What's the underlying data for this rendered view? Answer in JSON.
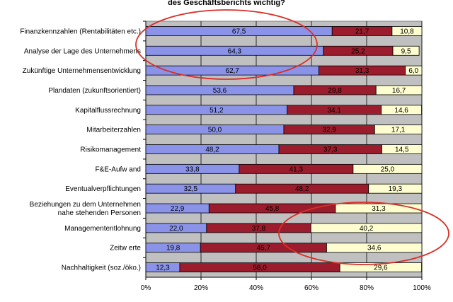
{
  "title_fragment": "des Geschäftsberichts wichtig?",
  "chart_data": {
    "type": "bar",
    "orientation": "horizontal",
    "stacked": true,
    "stack_mode": "percent",
    "categories": [
      "Finanzkennzahlen (Rentabilitäten etc.)",
      "Analyse der Lage des Unternehmens",
      "Zukünftige Unternehmensentwicklung",
      "Plandaten (zukunftsorientiert)",
      "Kapitalflussrechnung",
      "Mitarbeiterzahlen",
      "Risikomanagement",
      "F&E-Aufwand",
      "Eventualverpflichtungen",
      "Beziehungen zu dem Unternehmen nahe stehenden Personen",
      "Managemententlohnung",
      "Zeitwerte",
      "Nachhaltigkeit (soz./öko.)"
    ],
    "category_display": [
      [
        "Finanzkennzahlen (Rentabilitäten etc.)"
      ],
      [
        "Analyse der Lage des Unternehmens"
      ],
      [
        "Zukünftige Unternehmensentwicklung"
      ],
      [
        "Plandaten (zukunftsorientiert)"
      ],
      [
        "Kapitalflussrechnung"
      ],
      [
        "Mitarbeiterzahlen"
      ],
      [
        "Risikomanagement"
      ],
      [
        "F&E-Aufw and"
      ],
      [
        "Eventualverpflichtungen"
      ],
      [
        "Beziehungen zu dem Unternehmen",
        "nahe stehenden Personen"
      ],
      [
        "Managemententlohnung"
      ],
      [
        "Zeitw erte"
      ],
      [
        "Nachhaltigkeit (soz./öko.)"
      ]
    ],
    "series": [
      {
        "color": "#8b93e8",
        "values": [
          67.5,
          64.3,
          62.7,
          53.6,
          51.2,
          50.0,
          48.2,
          33.8,
          32.5,
          22.9,
          22.0,
          19.8,
          12.3
        ],
        "labels": [
          "67,5",
          "64,3",
          "62,7",
          "53,6",
          "51,2",
          "50,0",
          "48,2",
          "33,8",
          "32,5",
          "22,9",
          "22,0",
          "19,8",
          "12,3"
        ]
      },
      {
        "color": "#9b1c2c",
        "values": [
          21.7,
          25.2,
          31.3,
          29.8,
          34.1,
          32.9,
          37.3,
          41.3,
          48.2,
          45.8,
          37.8,
          45.7,
          58.0
        ],
        "labels": [
          "21,7",
          "25,2",
          "31,3",
          "29,8",
          "34,1",
          "32,9",
          "37,3",
          "41,3",
          "48,2",
          "45,8",
          "37,8",
          "45,7",
          "58,0"
        ]
      },
      {
        "color": "#fdfdd0",
        "values": [
          10.8,
          9.5,
          6.0,
          16.7,
          14.6,
          17.1,
          14.5,
          25.0,
          19.3,
          31.3,
          40.2,
          34.6,
          29.6
        ],
        "labels": [
          "10,8",
          "9,5",
          "6,0",
          "16,7",
          "14,6",
          "17,1",
          "14,5",
          "25,0",
          "19,3",
          "31,3",
          "40,2",
          "34,6",
          "29,6"
        ]
      }
    ],
    "xlim": [
      0,
      100
    ],
    "xticks": [
      "0%",
      "20%",
      "40%",
      "60%",
      "80%",
      "100%"
    ],
    "grid": true,
    "legend": "none",
    "annotations": [
      "red ellipse around first three bars",
      "red ellipse around Managemententlohnung and Zeitwerte segments"
    ]
  },
  "colors": {
    "plot_background": "#c0c0c0",
    "gridline": "#000000",
    "annotation_ellipse": "#d9302a"
  }
}
